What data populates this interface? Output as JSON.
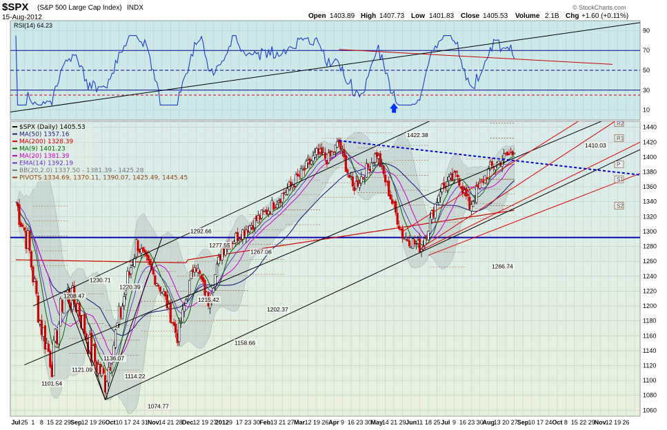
{
  "header": {
    "symbol": "$SPX",
    "name": "(S&P 500 Large Cap Index)",
    "exchange": "INDX",
    "date": "15-Aug-2012",
    "open_label": "Open",
    "open": "1403.89",
    "high_label": "High",
    "high": "1407.73",
    "low_label": "Low",
    "low": "1401.83",
    "close_label": "Close",
    "close": "1405.53",
    "volume_label": "Volume",
    "volume": "2.1B",
    "chg_label": "Chg",
    "chg": "+1.60 (+0.11%)",
    "watermark": "© StockCharts.com"
  },
  "rsi_panel": {
    "label": "RSI(14) 64.23",
    "ticks": [
      "90",
      "70",
      "50",
      "30",
      "10"
    ]
  },
  "legend": [
    {
      "text": "$SPX (Daily) 1405.53",
      "color": "#000000"
    },
    {
      "text": "MA(50) 1357.16",
      "color": "#1a237e"
    },
    {
      "text": "MA(200) 1328.39",
      "color": "#cc0000"
    },
    {
      "text": "MA(9) 1401.23",
      "color": "#006600"
    },
    {
      "text": "MA(20) 1381.39",
      "color": "#cc00cc"
    },
    {
      "text": "EMA(14) 1392.19",
      "color": "#6633cc"
    },
    {
      "text": "BB(20,2.0) 1337.50 - 1381.39 - 1425.28",
      "color": "#777777"
    },
    {
      "text": "PIVOTS 1334.69, 1370.11, 1390.07, 1425.49, 1445.45",
      "color": "#8b4513"
    }
  ],
  "pivot_labels": [
    "R2",
    "R1",
    "P",
    "S1",
    "S2"
  ],
  "chart_data": {
    "type": "line",
    "series": [
      {
        "name": "$SPX (Daily)",
        "x": [
          "Jul 23",
          "Aug 1",
          "Aug 8",
          "Aug 21",
          "Aug 31",
          "Sep 12",
          "Sep 21",
          "Oct 4",
          "Oct 27",
          "Nov 16",
          "Nov 25",
          "Dec 7",
          "Dec 19",
          "Jan 3",
          "Feb 1",
          "Mar 1",
          "Mar 16",
          "Mar 26",
          "Apr 2",
          "Apr 10",
          "Apr 20",
          "May 1",
          "May 18",
          "Jun 4",
          "Jun 19",
          "Jul 3",
          "Jul 12",
          "Jul 20",
          "Jul 27",
          "Aug 9",
          "Aug 15"
        ],
        "values": [
          1340,
          1286,
          1180,
          1123,
          1219,
          1201,
          1136,
          1099,
          1285,
          1216,
          1158,
          1260,
          1206,
          1277,
          1325,
          1374,
          1404,
          1397,
          1419,
          1358,
          1379,
          1405,
          1295,
          1278,
          1358,
          1375,
          1334,
          1362,
          1385,
          1402,
          1405.53
        ]
      }
    ],
    "annotations": [
      {
        "text": "1101.54",
        "value": 1101.54
      },
      {
        "text": "1121.09",
        "value": 1121.09
      },
      {
        "text": "1208.47",
        "value": 1208.47
      },
      {
        "text": "1230.71",
        "value": 1230.71
      },
      {
        "text": "1220.39",
        "value": 1220.39
      },
      {
        "text": "1136.07",
        "value": 1136.07
      },
      {
        "text": "1114.22",
        "value": 1114.22
      },
      {
        "text": "1074.77",
        "value": 1074.77
      },
      {
        "text": "1292.66",
        "value": 1292.66
      },
      {
        "text": "1277.55",
        "value": 1277.55
      },
      {
        "text": "1215.42",
        "value": 1215.42
      },
      {
        "text": "1267.06",
        "value": 1267.06
      },
      {
        "text": "1158.66",
        "value": 1158.66
      },
      {
        "text": "1202.37",
        "value": 1202.37
      },
      {
        "text": "1422.38",
        "value": 1422.38
      },
      {
        "text": "1266.74",
        "value": 1266.74
      },
      {
        "text": "1410.03",
        "value": 1410.03
      }
    ],
    "x_labels": [
      "Jul",
      "25",
      "1",
      "8",
      "15",
      "22",
      "29",
      "Sep",
      "12",
      "19",
      "26",
      "Oct",
      "10",
      "17",
      "24",
      "31",
      "Nov",
      "14",
      "21",
      "28",
      "Dec",
      "12",
      "19",
      "27",
      "2012",
      "9",
      "17",
      "23",
      "30",
      "Feb",
      "13",
      "21",
      "27",
      "Mar",
      "12",
      "19",
      "26",
      "Apr",
      "9",
      "16",
      "23",
      "30",
      "May",
      "14",
      "21",
      "29",
      "Jun",
      "11",
      "18",
      "25",
      "Jul",
      "9",
      "16",
      "23",
      "30",
      "Aug",
      "13",
      "20",
      "27",
      "Sep",
      "10",
      "17",
      "24",
      "Oct",
      "8",
      "15",
      "22",
      "29",
      "Nov",
      "12",
      "19",
      "26",
      "Dec"
    ],
    "y_ticks": [
      1440,
      1420,
      1400,
      1380,
      1360,
      1340,
      1320,
      1300,
      1280,
      1260,
      1240,
      1220,
      1200,
      1180,
      1160,
      1140,
      1120,
      1100,
      1080,
      1060
    ],
    "ylim": [
      1052,
      1448
    ],
    "pivots": {
      "S2": 1334.69,
      "S1": 1370.11,
      "P": 1390.07,
      "R1": 1425.49,
      "R2": 1445.45
    },
    "horizontal_line": 1292,
    "grid": true,
    "legend_position": "top-left"
  }
}
